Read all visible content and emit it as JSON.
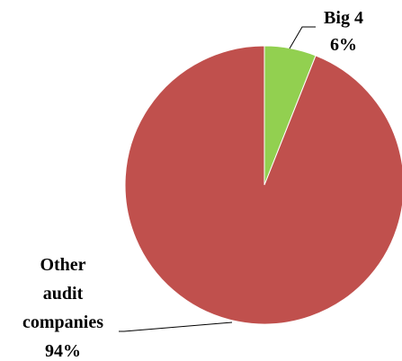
{
  "chart_data": {
    "type": "pie",
    "slices": [
      {
        "label": "Big 4",
        "percent_label": "6%",
        "value": 6,
        "color": "#92D050"
      },
      {
        "label": "Other audit companies",
        "percent_label": "94%",
        "value": 94,
        "color": "#C0504D"
      }
    ],
    "start_angle_deg": 0,
    "direction": "clockwise",
    "legend": "none",
    "data_labels": "outside with leader lines"
  },
  "labels": {
    "big4_name": "Big 4",
    "big4_pct": "6%",
    "other_line1": "Other",
    "other_line2": "audit",
    "other_line3": "companies",
    "other_pct": "94%"
  }
}
